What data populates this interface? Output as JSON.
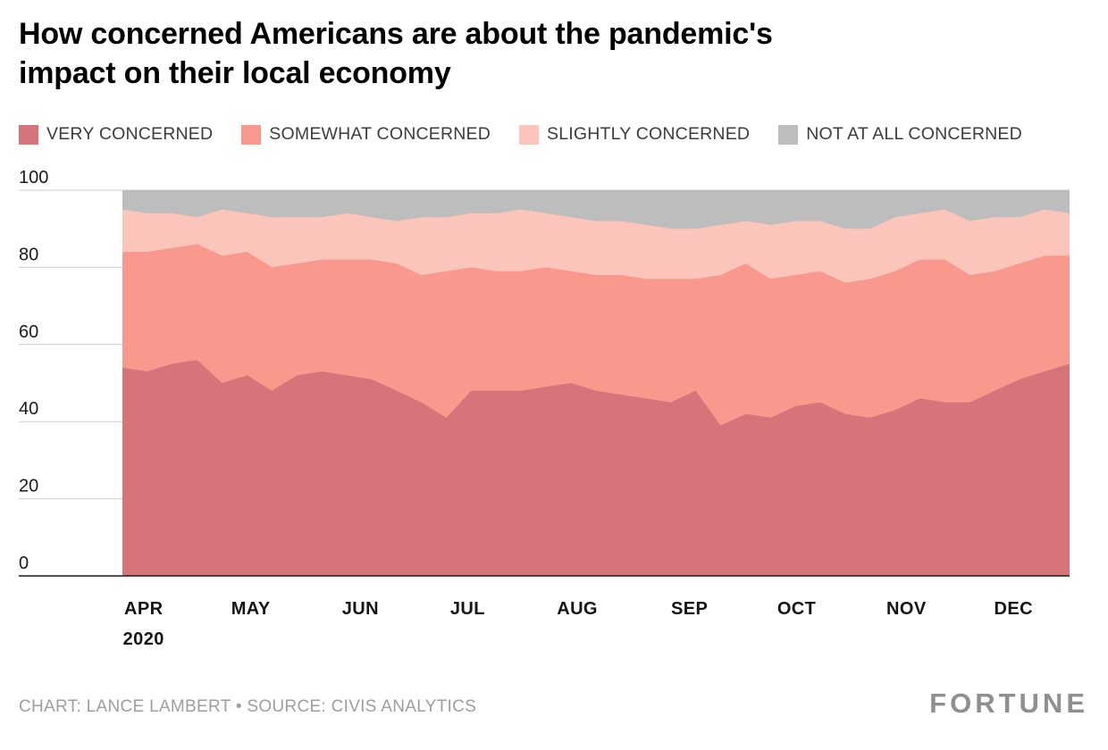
{
  "title": {
    "line1": "How concerned Americans are about the pandemic's",
    "line2": "impact on their local economy"
  },
  "legend": {
    "items": [
      {
        "label": "VERY CONCERNED",
        "color": "#d6747b"
      },
      {
        "label": "SOMEWHAT CONCERNED",
        "color": "#f9998d"
      },
      {
        "label": "SLIGHTLY CONCERNED",
        "color": "#fbc5bb"
      },
      {
        "label": "NOT AT ALL CONCERNED",
        "color": "#bdbdbd"
      }
    ]
  },
  "chart_data": {
    "type": "area",
    "stacked": true,
    "title": "How concerned Americans are about the pandemic's impact on their local economy",
    "ylim": [
      0,
      100
    ],
    "y_ticks": [
      0,
      20,
      40,
      60,
      80,
      100
    ],
    "grid": "horizontal",
    "x_unit": "weeks, April 2020 through mid-December 2020",
    "months": [
      "APR",
      "MAY",
      "JUN",
      "JUL",
      "AUG",
      "SEP",
      "OCT",
      "NOV",
      "DEC"
    ],
    "year_label": "2020",
    "month_week_positions": [
      0,
      4.3,
      8.7,
      13.0,
      17.4,
      21.9,
      26.2,
      30.6,
      34.9
    ],
    "series": [
      {
        "name": "VERY CONCERNED",
        "color": "#d6747b",
        "values": [
          54,
          53,
          55,
          56,
          50,
          52,
          48,
          52,
          53,
          52,
          51,
          48,
          45,
          41,
          48,
          48,
          48,
          49,
          50,
          48,
          47,
          46,
          45,
          48,
          39,
          42,
          41,
          44,
          45,
          42,
          41,
          43,
          46,
          45,
          45,
          48,
          51,
          53,
          55
        ]
      },
      {
        "name": "SOMEWHAT CONCERNED",
        "color": "#f9998d",
        "values": [
          30,
          31,
          30,
          30,
          33,
          32,
          32,
          29,
          29,
          30,
          31,
          33,
          33,
          38,
          32,
          31,
          31,
          31,
          29,
          30,
          31,
          31,
          32,
          29,
          39,
          39,
          36,
          34,
          34,
          34,
          36,
          36,
          36,
          37,
          33,
          31,
          30,
          30,
          28
        ]
      },
      {
        "name": "SLIGHTLY CONCERNED",
        "color": "#fbc5bb",
        "values": [
          11,
          10,
          9,
          7,
          12,
          10,
          13,
          12,
          11,
          12,
          11,
          11,
          15,
          14,
          14,
          15,
          16,
          14,
          14,
          14,
          14,
          14,
          13,
          13,
          13,
          11,
          14,
          14,
          13,
          14,
          13,
          14,
          12,
          13,
          14,
          14,
          12,
          12,
          11
        ]
      },
      {
        "name": "NOT AT ALL CONCERNED",
        "color": "#bdbdbd",
        "values": [
          5,
          6,
          6,
          7,
          5,
          6,
          7,
          7,
          7,
          6,
          7,
          8,
          7,
          7,
          6,
          6,
          5,
          6,
          7,
          8,
          8,
          9,
          10,
          10,
          9,
          8,
          9,
          8,
          8,
          10,
          10,
          7,
          6,
          5,
          8,
          7,
          7,
          5,
          6
        ]
      }
    ]
  },
  "footer": {
    "credit": "CHART: LANCE LAMBERT • SOURCE: CIVIS ANALYTICS",
    "brand": "FORTUNE"
  }
}
